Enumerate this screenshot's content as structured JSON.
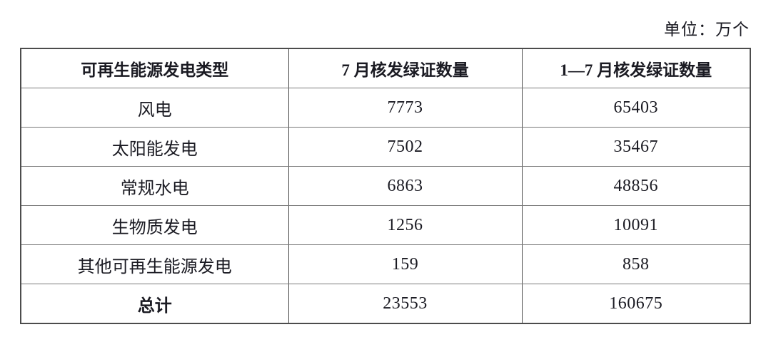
{
  "unit_label": "单位：万个",
  "table": {
    "headers": [
      "可再生能源发电类型",
      "7 月核发绿证数量",
      "1—7 月核发绿证数量"
    ],
    "rows": [
      [
        "风电",
        "7773",
        "65403"
      ],
      [
        "太阳能发电",
        "7502",
        "35467"
      ],
      [
        "常规水电",
        "6863",
        "48856"
      ],
      [
        "生物质发电",
        "1256",
        "10091"
      ],
      [
        "其他可再生能源发电",
        "159",
        "858"
      ],
      [
        "总计",
        "23553",
        "160675"
      ]
    ]
  },
  "chart_data": {
    "type": "table",
    "title": "",
    "unit": "单位：万个",
    "columns": [
      "可再生能源发电类型",
      "7 月核发绿证数量",
      "1—7 月核发绿证数量"
    ],
    "categories": [
      "风电",
      "太阳能发电",
      "常规水电",
      "生物质发电",
      "其他可再生能源发电",
      "总计"
    ],
    "series": [
      {
        "name": "7 月核发绿证数量",
        "values": [
          7773,
          7502,
          6863,
          1256,
          159,
          23553
        ]
      },
      {
        "name": "1—7 月核发绿证数量",
        "values": [
          65403,
          35467,
          48856,
          10091,
          858,
          160675
        ]
      }
    ]
  },
  "colors": {
    "text": "#1a1a22",
    "border_outer": "#4c4c4c",
    "border_inner": "#7a7a7a",
    "background": "#ffffff"
  }
}
